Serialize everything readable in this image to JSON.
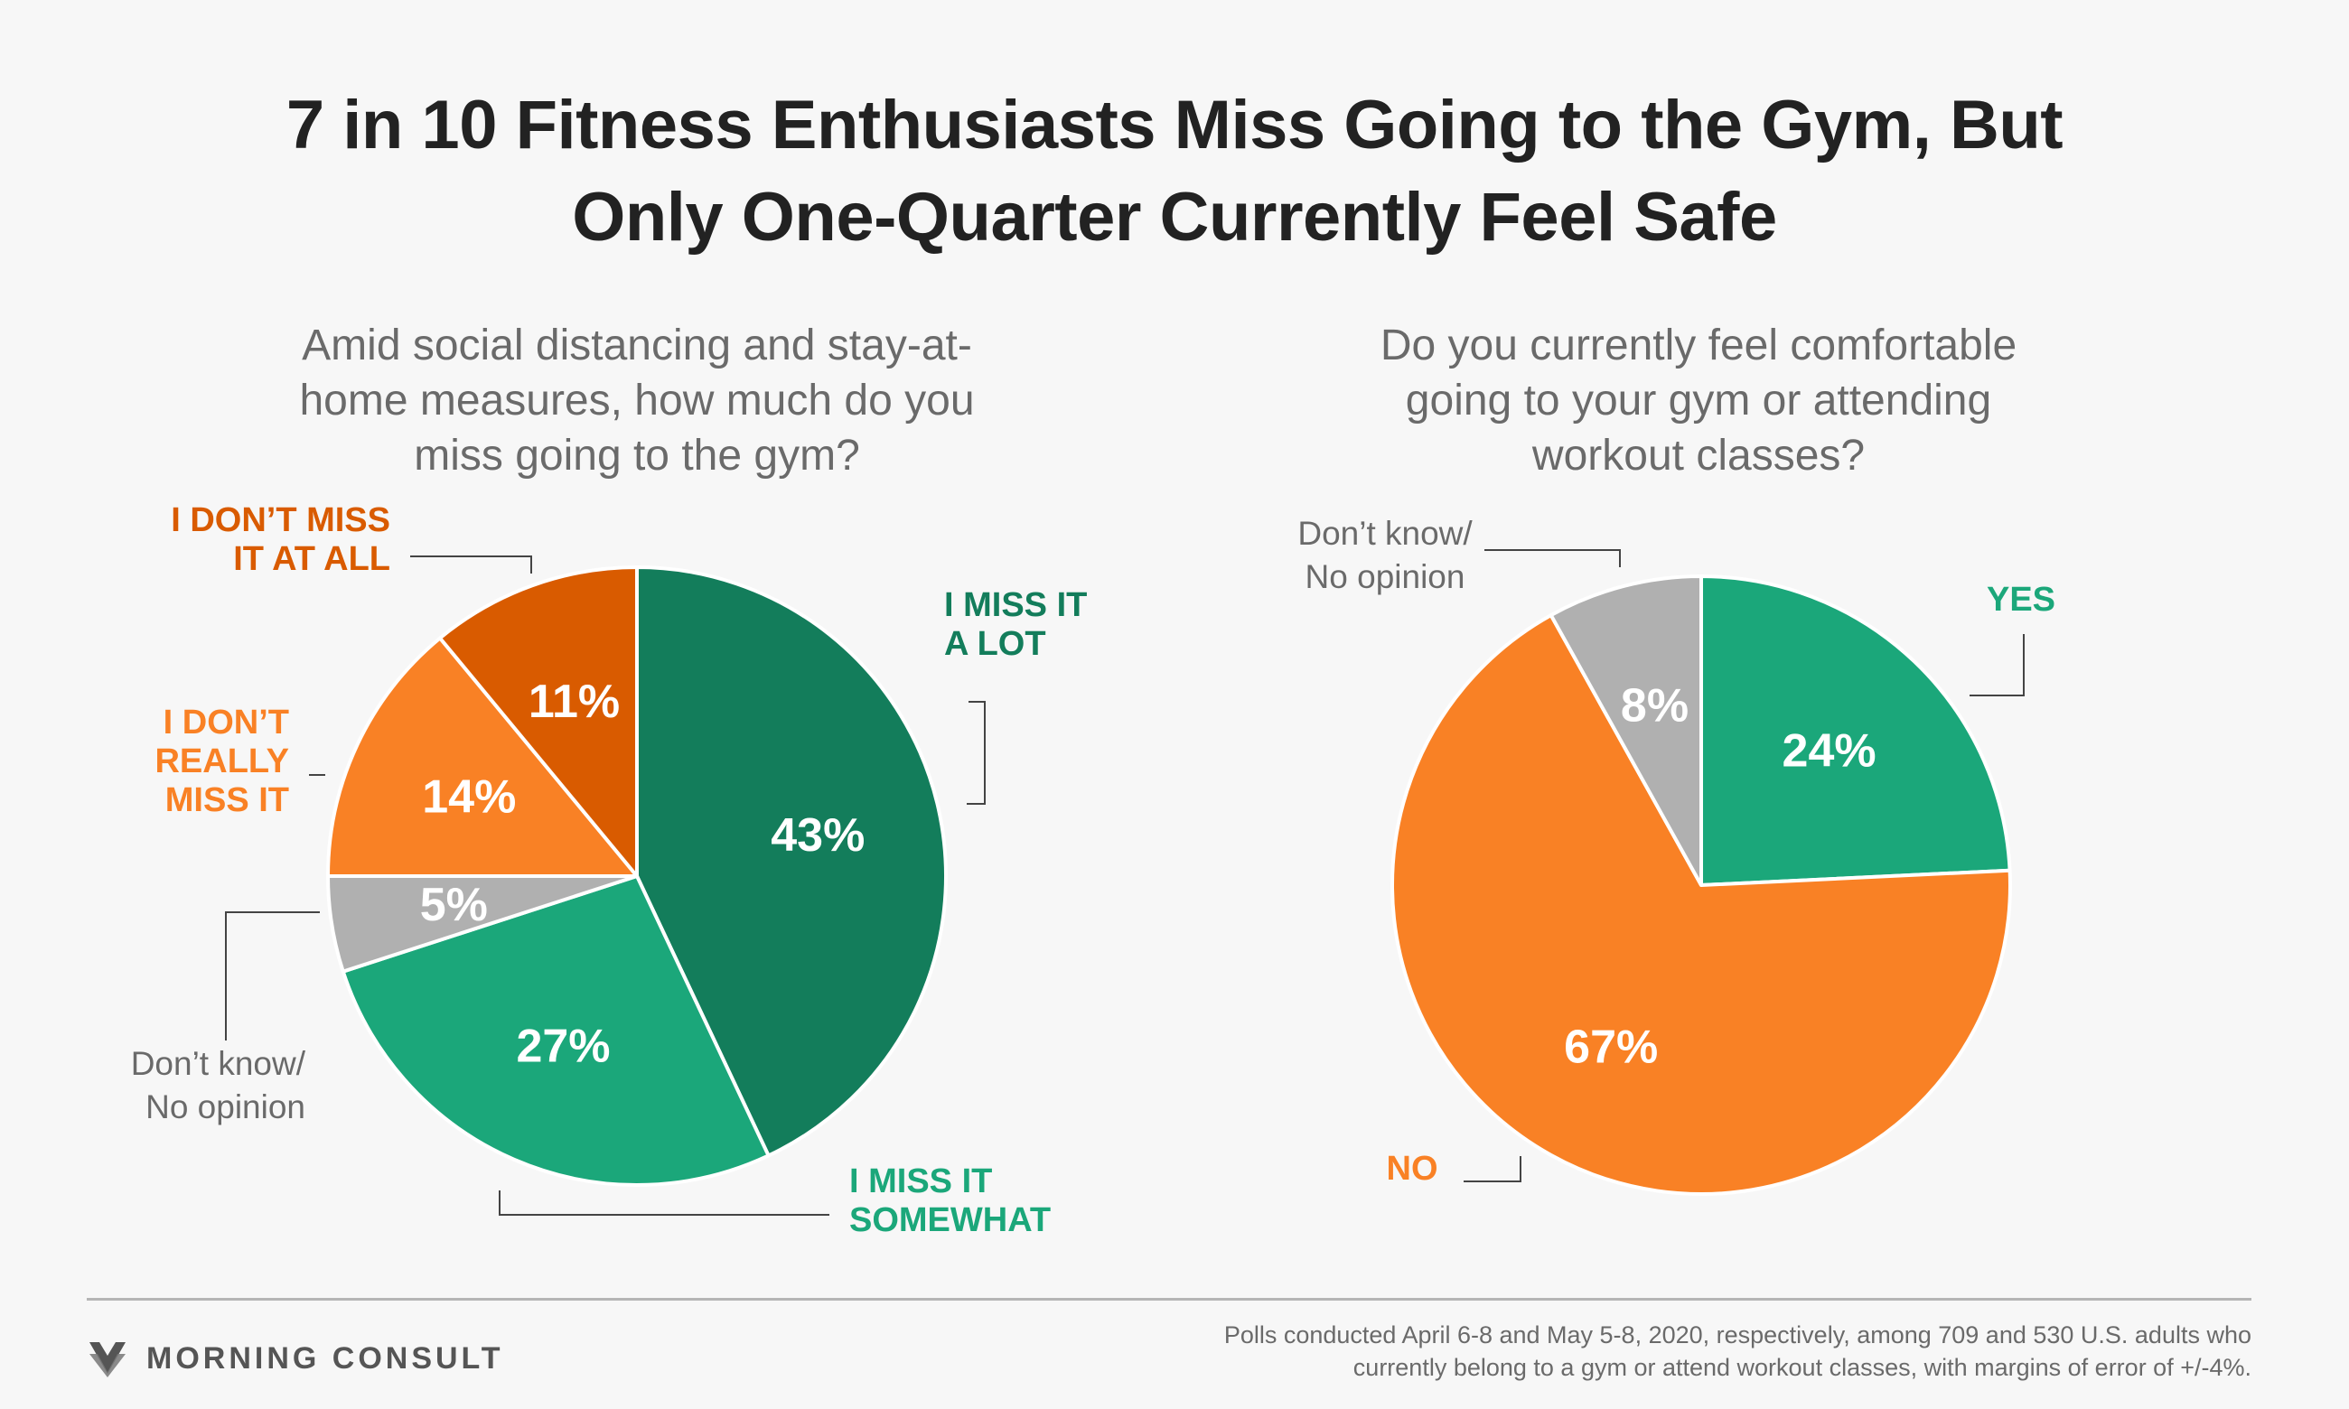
{
  "title_lines": [
    "7 in 10 Fitness Enthusiasts Miss Going to the Gym, But",
    "Only One-Quarter Currently Feel Safe"
  ],
  "chart_data": [
    {
      "type": "pie",
      "question_lines": [
        "Amid social distancing and stay-at-",
        "home measures, how much do you",
        "miss going to the gym?"
      ],
      "slices": [
        {
          "label_lines": [
            "I MISS IT",
            "A LOT"
          ],
          "value": 43,
          "pct_label": "43%",
          "color": "#137d5b",
          "label_color": "#137d5b"
        },
        {
          "label_lines": [
            "I MISS IT",
            "SOMEWHAT"
          ],
          "value": 27,
          "pct_label": "27%",
          "color": "#1ba77a",
          "label_color": "#1ba77a"
        },
        {
          "label_lines": [
            "Don’t know/",
            "No opinion"
          ],
          "value": 5,
          "pct_label": "5%",
          "color": "#b0b0b0",
          "label_color": "#6a6a6a"
        },
        {
          "label_lines": [
            "I DON’T",
            "REALLY",
            "MISS IT"
          ],
          "value": 14,
          "pct_label": "14%",
          "color": "#f98125",
          "label_color": "#f98125"
        },
        {
          "label_lines": [
            "I DON’T MISS",
            "IT AT ALL"
          ],
          "value": 11,
          "pct_label": "11%",
          "color": "#d95b00",
          "label_color": "#d95b00"
        }
      ]
    },
    {
      "type": "pie",
      "question_lines": [
        "Do you currently feel comfortable",
        "going to your gym or attending",
        "workout classes?"
      ],
      "slices": [
        {
          "label_lines": [
            "YES"
          ],
          "value": 24,
          "pct_label": "24%",
          "color": "#1ba77a",
          "label_color": "#1ba77a"
        },
        {
          "label_lines": [
            "NO"
          ],
          "value": 67,
          "pct_label": "67%",
          "color": "#f98125",
          "label_color": "#f98125"
        },
        {
          "label_lines": [
            "Don’t know/",
            "No opinion"
          ],
          "value": 8,
          "pct_label": "8%",
          "color": "#b0b0b0",
          "label_color": "#6a6a6a"
        }
      ]
    }
  ],
  "footer": {
    "brand": "MORNING CONSULT",
    "note_lines": [
      "Polls conducted April 6-8 and May 5-8, 2020, respectively, among 709 and 530 U.S. adults who",
      "currently belong to a gym or attend workout classes, with margins of error of +/-4%."
    ]
  },
  "colors": {
    "leader_line": "#444444",
    "slice_border": "#ffffff",
    "pct_text": "#ffffff",
    "background": "#f7f7f7"
  }
}
